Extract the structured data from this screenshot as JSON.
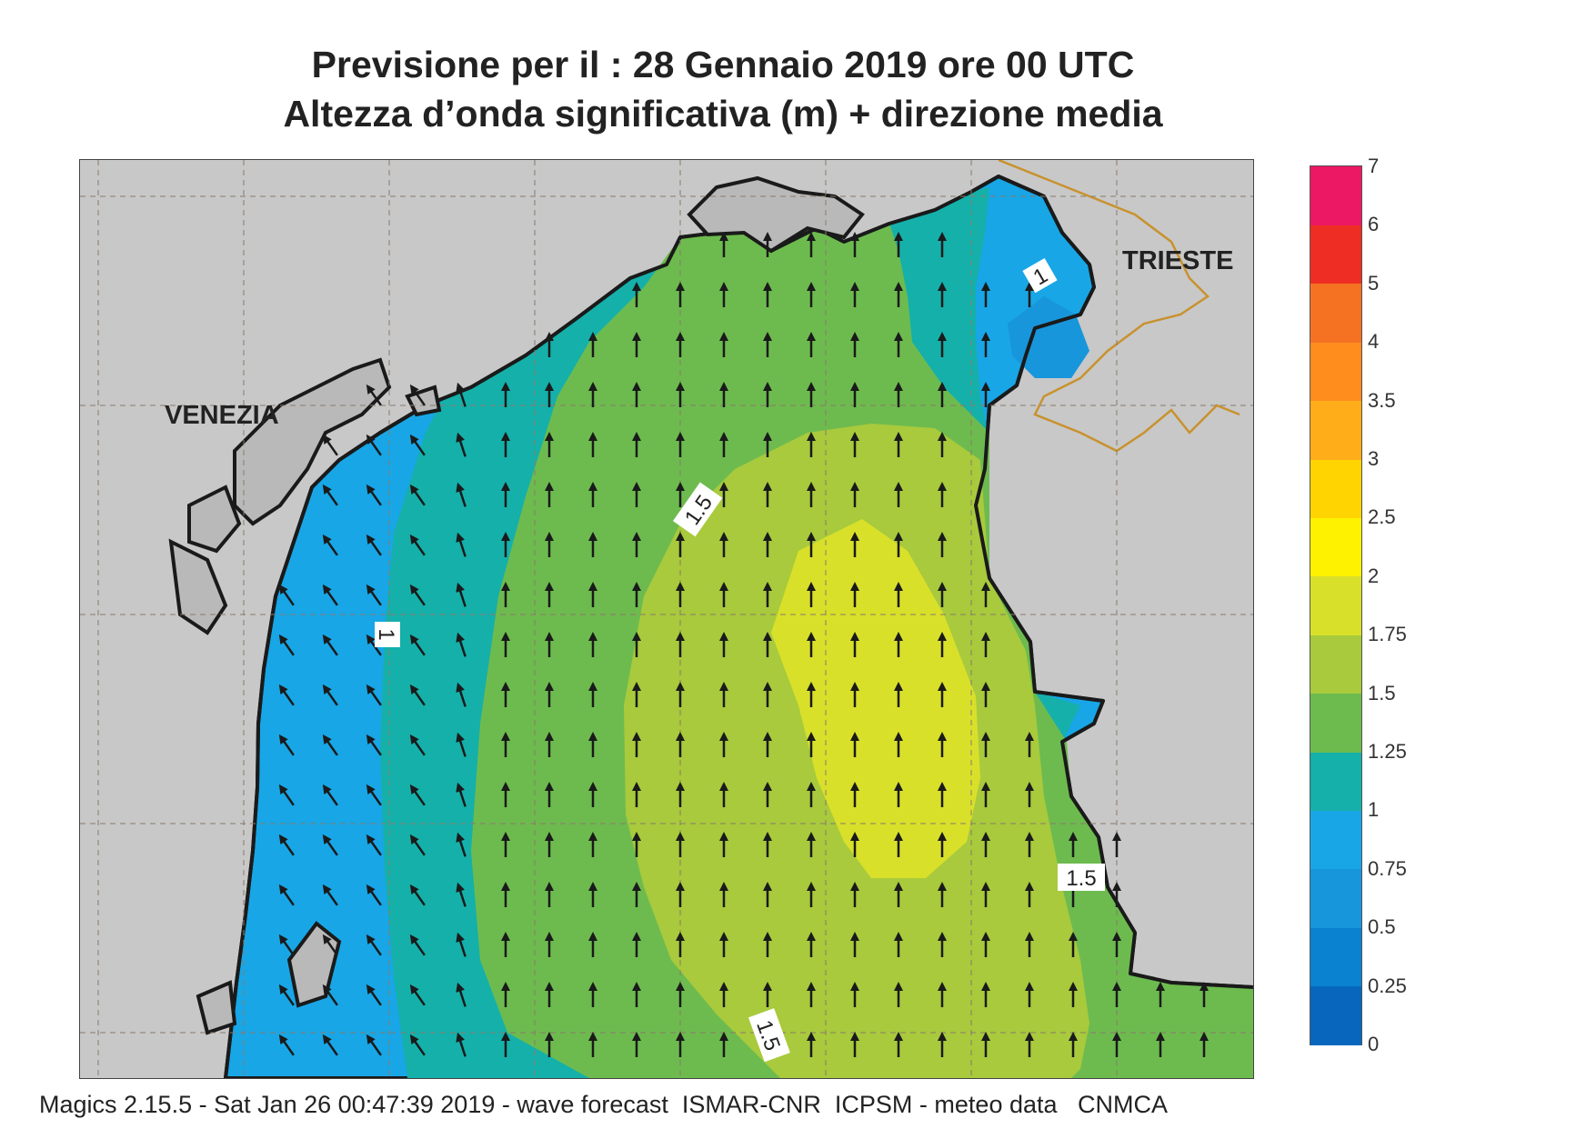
{
  "header": {
    "title_line1": "Previsione per il  :  28  Gennaio  2019   ore 00 UTC",
    "title_line2": "Altezza d’onda significativa (m) + direzione media"
  },
  "map": {
    "places": [
      "VENEZIA",
      "TRIESTE"
    ],
    "contour_labels": [
      "1.5",
      "1",
      "1",
      "1.5",
      "1.5"
    ],
    "land_color": "#c8c8c8",
    "coast_color": "#1a1a1a",
    "border_color": "#c8922e",
    "grid_color": "#8a7a6a",
    "arrow_icon": "north-arrow-icon",
    "mean_direction": "N"
  },
  "colorbar": {
    "labels": [
      "7",
      "6",
      "5",
      "4",
      "3.5",
      "3",
      "2.5",
      "2",
      "1.75",
      "1.5",
      "1.25",
      "1",
      "0.75",
      "0.5",
      "0.25",
      "0"
    ],
    "levels": [
      0,
      0.25,
      0.5,
      0.75,
      1,
      1.25,
      1.5,
      1.75,
      2,
      2.5,
      3,
      3.5,
      4,
      5,
      6,
      7
    ],
    "colors": [
      "#0866bd",
      "#0a82cf",
      "#1896db",
      "#18a6e6",
      "#15b0aa",
      "#6dbb4f",
      "#a8ca3c",
      "#d9e02a",
      "#fff200",
      "#ffd400",
      "#ffae1a",
      "#ff8d1e",
      "#f57222",
      "#ee2e24",
      "#ec1863"
    ]
  },
  "footer": {
    "text": "Magics 2.15.5 - Sat Jan 26 00:47:39 2019 - wave forecast  ISMAR-CNR  ICPSM - meteo data   CNMCA"
  }
}
